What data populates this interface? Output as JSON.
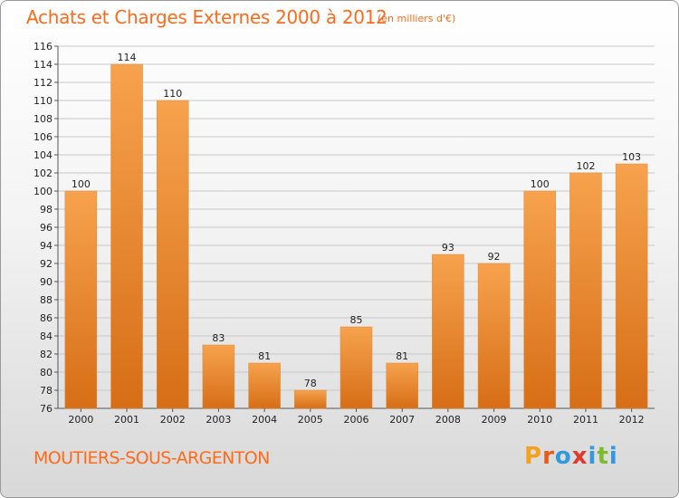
{
  "header": {
    "title": "Achats et Charges Externes 2000 à 2012",
    "subtitle": "(en milliers d'€)"
  },
  "footer": {
    "location": "MOUTIERS-SOUS-ARGENTON",
    "logo": "Proxiti"
  },
  "colors": {
    "accent": "#ff6a1a",
    "bar_light": "#f7a24e",
    "bar_dark": "#d66e16",
    "grid": "#c8c8c8",
    "logo_letters": [
      "#f4a020",
      "#e85a1a",
      "#2f9ae0",
      "#e23a2a",
      "#2f9ae0",
      "#7cbc2c",
      "#2f9ae0"
    ]
  },
  "chart_data": {
    "type": "bar",
    "title": "Achats et Charges Externes 2000 à 2012",
    "subtitle": "(en milliers d'€)",
    "categories": [
      "2000",
      "2001",
      "2002",
      "2003",
      "2004",
      "2005",
      "2006",
      "2007",
      "2008",
      "2009",
      "2010",
      "2011",
      "2012"
    ],
    "values": [
      100,
      114,
      110,
      83,
      81,
      78,
      85,
      81,
      93,
      92,
      100,
      102,
      103
    ],
    "ylim": [
      76,
      116
    ],
    "ytick_step": 2,
    "yticks": [
      "76",
      "78",
      "80",
      "82",
      "84",
      "86",
      "88",
      "90",
      "92",
      "94",
      "96",
      "98",
      "100",
      "102",
      "104",
      "106",
      "108",
      "110",
      "112",
      "114",
      "116"
    ],
    "grid": true,
    "legend": "none",
    "xlabel": "",
    "ylabel": ""
  }
}
